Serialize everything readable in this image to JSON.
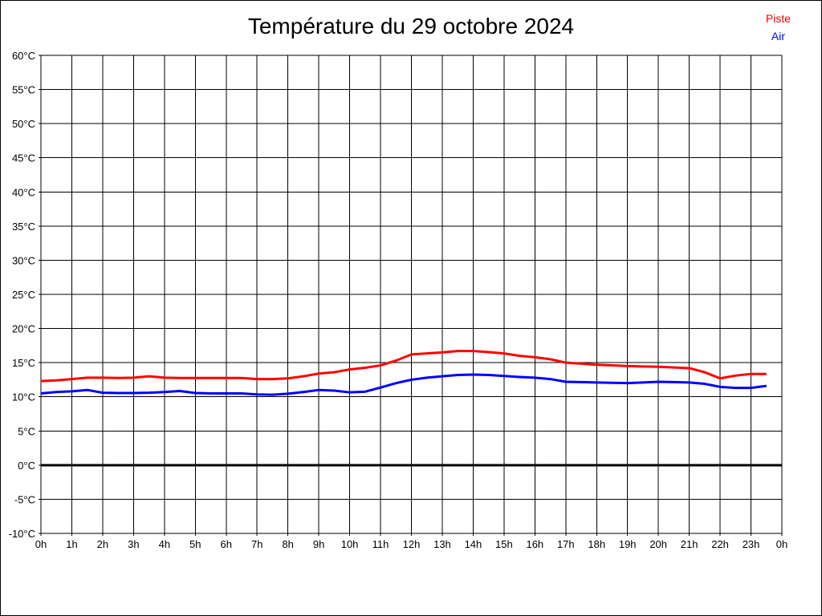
{
  "title": "Température du 29 octobre 2024",
  "legend": {
    "piste_label": "Piste",
    "air_label": "Air"
  },
  "chart_data": {
    "type": "line",
    "title": "Température du 29 octobre 2024",
    "xlabel": "",
    "ylabel": "",
    "xlim": [
      0,
      24
    ],
    "ylim": [
      -10,
      60
    ],
    "y_step": 5,
    "grid": true,
    "zero_line_thick": true,
    "legend_position": "top-right",
    "x_tick_labels": [
      "0h",
      "1h",
      "2h",
      "3h",
      "4h",
      "5h",
      "6h",
      "7h",
      "8h",
      "9h",
      "10h",
      "11h",
      "12h",
      "13h",
      "14h",
      "15h",
      "16h",
      "17h",
      "18h",
      "19h",
      "20h",
      "21h",
      "22h",
      "23h",
      "0h"
    ],
    "y_tick_labels": [
      "60°C",
      "55°C",
      "50°C",
      "45°C",
      "40°C",
      "35°C",
      "30°C",
      "25°C",
      "20°C",
      "15°C",
      "10°C",
      "5°C",
      "0°C",
      "-5°C",
      "-10°C"
    ],
    "x": [
      0,
      0.5,
      1,
      1.5,
      2,
      2.5,
      3,
      3.5,
      4,
      4.5,
      5,
      5.5,
      6,
      6.5,
      7,
      7.5,
      8,
      8.5,
      9,
      9.5,
      10,
      10.5,
      11,
      11.5,
      12,
      12.5,
      13,
      13.5,
      14,
      14.5,
      15,
      15.5,
      16,
      16.5,
      17,
      17.5,
      18,
      18.5,
      19,
      19.5,
      20,
      20.5,
      21,
      21.5,
      22,
      22.5,
      23,
      23.5
    ],
    "series": [
      {
        "name": "Piste",
        "color": "#ff0000",
        "values": [
          12.3,
          12.4,
          12.6,
          12.8,
          12.8,
          12.75,
          12.8,
          13.0,
          12.8,
          12.75,
          12.75,
          12.75,
          12.75,
          12.75,
          12.6,
          12.6,
          12.7,
          13.0,
          13.4,
          13.6,
          14.0,
          14.25,
          14.6,
          15.3,
          16.2,
          16.35,
          16.5,
          16.7,
          16.7,
          16.55,
          16.35,
          16.0,
          15.8,
          15.5,
          15.0,
          14.85,
          14.7,
          14.6,
          14.5,
          14.45,
          14.4,
          14.3,
          14.2,
          13.6,
          12.7,
          13.1,
          13.35,
          13.35
        ]
      },
      {
        "name": "Air",
        "color": "#0000ff",
        "values": [
          10.5,
          10.7,
          10.8,
          11.0,
          10.6,
          10.55,
          10.55,
          10.6,
          10.7,
          10.85,
          10.55,
          10.5,
          10.5,
          10.5,
          10.35,
          10.3,
          10.45,
          10.7,
          11.0,
          10.9,
          10.65,
          10.75,
          11.35,
          12.0,
          12.5,
          12.8,
          13.0,
          13.2,
          13.25,
          13.2,
          13.05,
          12.9,
          12.8,
          12.6,
          12.2,
          12.15,
          12.1,
          12.05,
          12.0,
          12.1,
          12.2,
          12.15,
          12.1,
          11.9,
          11.45,
          11.3,
          11.3,
          11.6
        ]
      }
    ]
  }
}
